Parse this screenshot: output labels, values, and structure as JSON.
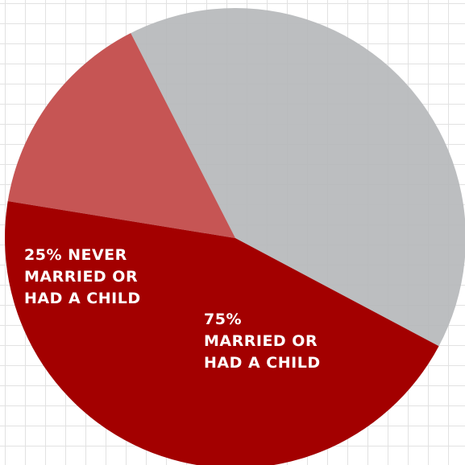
{
  "chart_data": {
    "type": "pie",
    "note_sections": [
      {
        "name": "unlabeled-gray-section",
        "color": "#b6b8bb"
      }
    ],
    "slices": [
      {
        "key": "married",
        "value": 75,
        "color": "#a30000",
        "label_lines": [
          "75%",
          "MARRIED OR",
          "HAD A CHILD"
        ]
      },
      {
        "key": "never",
        "value": 25,
        "color": "#c65554",
        "label_lines": [
          "25% NEVER",
          "MARRIED OR",
          "HAD A CHILD"
        ]
      }
    ],
    "title": "",
    "legend": "none"
  }
}
